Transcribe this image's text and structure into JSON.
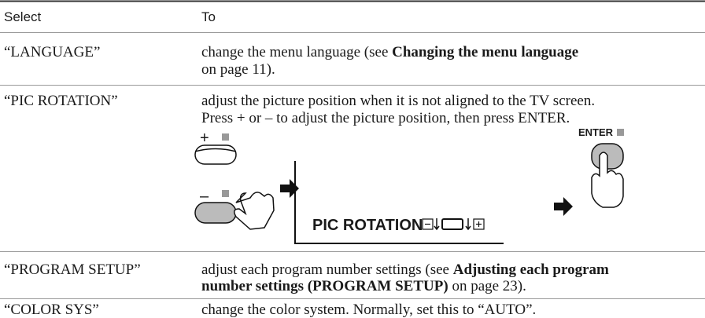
{
  "header": {
    "select": "Select",
    "to": "To"
  },
  "rows": [
    {
      "select": "“LANGUAGE”",
      "to": [
        [
          "change the menu language (see ",
          "Changing the menu language"
        ],
        [
          "on page 11)."
        ]
      ]
    },
    {
      "select": "“PIC ROTATION”",
      "to": [
        [
          "adjust the picture position when it is not aligned to the TV screen."
        ],
        [
          "Press + or – to adjust the picture position, then press ENTER."
        ]
      ]
    },
    {
      "select": "“PROGRAM SETUP”",
      "to": [
        [
          "adjust each program number settings (see ",
          "Adjusting each program"
        ],
        [
          "number settings (PROGRAM SETUP)",
          " on page 23)."
        ]
      ]
    },
    {
      "select": "“COLOR SYS”",
      "to": [
        [
          "change the color system. Normally, set this to “AUTO”."
        ]
      ]
    }
  ],
  "illustration": {
    "plus": "+",
    "minus": "–",
    "screen_label": "PIC ROTATION",
    "enter": "ENTER"
  }
}
